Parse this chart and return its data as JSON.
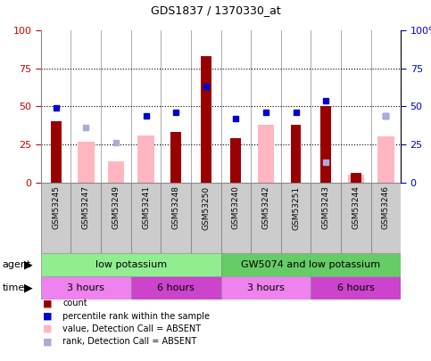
{
  "title": "GDS1837 / 1370330_at",
  "samples": [
    "GSM53245",
    "GSM53247",
    "GSM53249",
    "GSM53241",
    "GSM53248",
    "GSM53250",
    "GSM53240",
    "GSM53242",
    "GSM53251",
    "GSM53243",
    "GSM53244",
    "GSM53246"
  ],
  "count_values": [
    40,
    0,
    0,
    0,
    33,
    83,
    29,
    0,
    38,
    50,
    6,
    0
  ],
  "percentile_rank": [
    49,
    0,
    0,
    44,
    46,
    63,
    42,
    46,
    46,
    54,
    0,
    44
  ],
  "absent_value": [
    0,
    27,
    14,
    31,
    0,
    0,
    0,
    38,
    0,
    0,
    5,
    30
  ],
  "absent_rank": [
    0,
    36,
    26,
    0,
    0,
    0,
    0,
    0,
    0,
    13,
    0,
    44
  ],
  "count_color": "#990000",
  "percentile_color": "#0000CC",
  "absent_value_color": "#FFB6C1",
  "absent_rank_color": "#AAAADD",
  "ylim": [
    0,
    100
  ],
  "yticks": [
    0,
    25,
    50,
    75,
    100
  ],
  "grid_lines": [
    25,
    50,
    75
  ],
  "agent_label_left": "low potassium",
  "agent_label_right": "GW5074 and low potassium",
  "agent_color_left": "#90EE90",
  "agent_color_right": "#66CC66",
  "time_labels": [
    "3 hours",
    "6 hours",
    "3 hours",
    "6 hours"
  ],
  "time_color_light": "#EE82EE",
  "time_color_dark": "#CC44CC",
  "legend_labels": [
    "count",
    "percentile rank within the sample",
    "value, Detection Call = ABSENT",
    "rank, Detection Call = ABSENT"
  ],
  "legend_colors": [
    "#990000",
    "#0000CC",
    "#FFB6C1",
    "#AAAADD"
  ],
  "bar_width": 0.35,
  "absent_bar_width": 0.55,
  "marker_size": 5,
  "left_tick_color": "#CC0000",
  "right_tick_color": "#0000CC",
  "sample_box_color": "#CCCCCC",
  "fig_width": 4.83,
  "fig_height": 4.05,
  "dpi": 100
}
